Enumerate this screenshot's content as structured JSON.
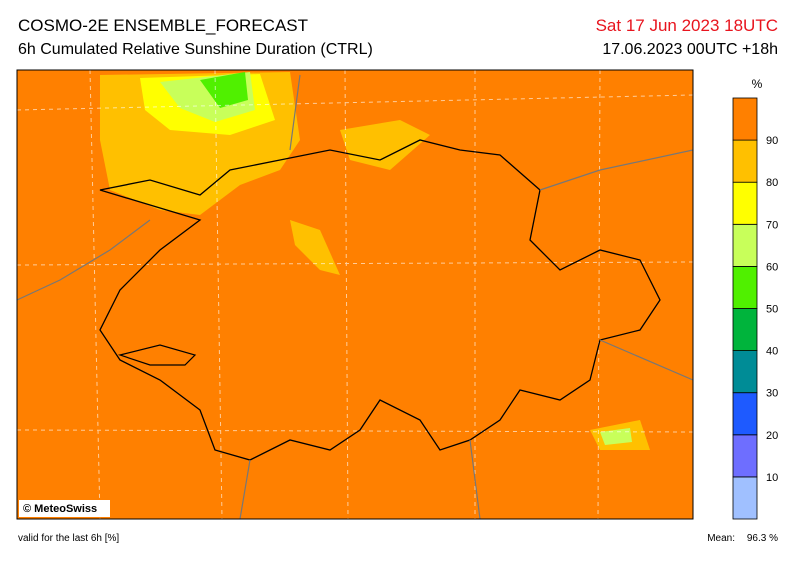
{
  "header": {
    "title": "COSMO-2E ENSEMBLE_FORECAST",
    "subtitle": "6h Cumulated Relative Sunshine Duration (CTRL)",
    "valid_time": "Sat 17 Jun 2023 18UTC",
    "run": "17.06.2023 00UTC +18h"
  },
  "map": {
    "credit": "© MeteoSwiss"
  },
  "colorbar": {
    "unit": "%",
    "labels": [
      "10",
      "20",
      "30",
      "40",
      "50",
      "60",
      "70",
      "80",
      "90"
    ],
    "colors": [
      "#a0c0ff",
      "#6e6eff",
      "#1e5aff",
      "#008c96",
      "#00b43c",
      "#50f000",
      "#c8ff5a",
      "#ffff00",
      "#ffc000",
      "#ff8000"
    ]
  },
  "footer": {
    "note": "valid for the last 6h [%]",
    "mean_label": "Mean:",
    "mean_value": "96.3 %"
  }
}
